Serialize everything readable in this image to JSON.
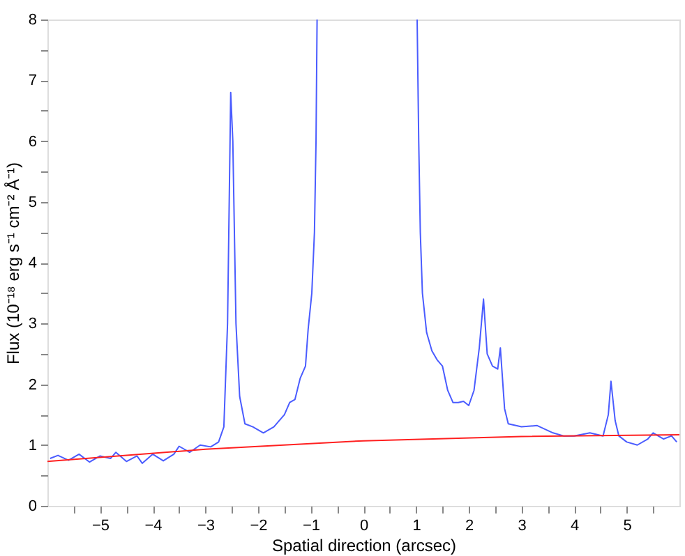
{
  "chart_data": {
    "type": "line",
    "xlabel": "Spatial direction (arcsec)",
    "ylabel": "Flux (10⁻¹⁸ erg s⁻¹ cm⁻² Å⁻¹)",
    "xlim": [
      -6,
      6
    ],
    "ylim": [
      0,
      8
    ],
    "xticks": [
      -5,
      -4,
      -3,
      -2,
      -1,
      0,
      1,
      2,
      3,
      4,
      5,
      {
        "value": -5.5,
        "label": null
      },
      {
        "value": -4.5,
        "label": null
      },
      {
        "value": -3.5,
        "label": null
      },
      {
        "value": -2.5,
        "label": null
      },
      {
        "value": -1.5,
        "label": null
      },
      {
        "value": -0.5,
        "label": null
      },
      {
        "value": 0.5,
        "label": null
      },
      {
        "value": 1.5,
        "label": null
      },
      {
        "value": 2.5,
        "label": null
      },
      {
        "value": 3.5,
        "label": null
      },
      {
        "value": 4.5,
        "label": null
      },
      {
        "value": 5.5,
        "label": null
      }
    ],
    "yticks": [
      0,
      1,
      2,
      3,
      4,
      5,
      6,
      7,
      8,
      {
        "value": 0.5,
        "label": null
      },
      {
        "value": 1.5,
        "label": null
      },
      {
        "value": 2.5,
        "label": null
      },
      {
        "value": 3.5,
        "label": null
      },
      {
        "value": 4.5,
        "label": null
      },
      {
        "value": 5.5,
        "label": null
      },
      {
        "value": 6.5,
        "label": null
      },
      {
        "value": 7.5,
        "label": null
      }
    ],
    "grid": false,
    "legend": false,
    "marker": "none",
    "line_style": "solid",
    "series": [
      {
        "color": "#4a5cff",
        "x": [
          -5.95,
          -5.8,
          -5.6,
          -5.4,
          -5.2,
          -5.0,
          -4.8,
          -4.7,
          -4.5,
          -4.3,
          -4.2,
          -4.0,
          -3.8,
          -3.6,
          -3.5,
          -3.3,
          -3.1,
          -2.9,
          -2.75,
          -2.65,
          -2.58,
          -2.52,
          -2.48,
          -2.42,
          -2.35,
          -2.25,
          -2.1,
          -1.9,
          -1.7,
          -1.5,
          -1.4,
          -1.3,
          -1.2,
          -1.1,
          -1.05,
          -0.98,
          -0.93,
          -0.9,
          -0.88,
          0.0,
          1.02,
          1.05,
          1.08,
          1.12,
          1.2,
          1.3,
          1.4,
          1.5,
          1.6,
          1.7,
          1.8,
          1.9,
          2.0,
          2.1,
          2.2,
          2.28,
          2.35,
          2.45,
          2.55,
          2.6,
          2.68,
          2.75,
          3.0,
          3.3,
          3.6,
          3.8,
          4.0,
          4.3,
          4.55,
          4.65,
          4.7,
          4.78,
          4.85,
          5.0,
          5.2,
          5.4,
          5.5,
          5.7,
          5.85,
          5.95
        ],
        "values": [
          0.78,
          0.83,
          0.75,
          0.85,
          0.72,
          0.82,
          0.78,
          0.88,
          0.73,
          0.82,
          0.7,
          0.85,
          0.74,
          0.85,
          0.98,
          0.88,
          1.0,
          0.97,
          1.05,
          1.3,
          3.0,
          6.8,
          6.0,
          3.0,
          1.8,
          1.35,
          1.3,
          1.2,
          1.3,
          1.5,
          1.7,
          1.75,
          2.1,
          2.3,
          2.9,
          3.5,
          4.5,
          6.0,
          8,
          null,
          8,
          6,
          4.5,
          3.5,
          2.85,
          2.55,
          2.4,
          2.3,
          1.9,
          1.7,
          1.7,
          1.72,
          1.65,
          1.9,
          2.6,
          3.4,
          2.5,
          2.3,
          2.25,
          2.6,
          1.6,
          1.35,
          1.3,
          1.32,
          1.2,
          1.15,
          1.15,
          1.2,
          1.15,
          1.5,
          2.05,
          1.4,
          1.15,
          1.05,
          1.0,
          1.1,
          1.2,
          1.1,
          1.15,
          1.05
        ]
      },
      {
        "color": "#ff2020",
        "x": [
          -6,
          -3,
          0,
          3,
          6
        ],
        "values": [
          0.73,
          0.93,
          1.07,
          1.14,
          1.17
        ]
      }
    ]
  }
}
